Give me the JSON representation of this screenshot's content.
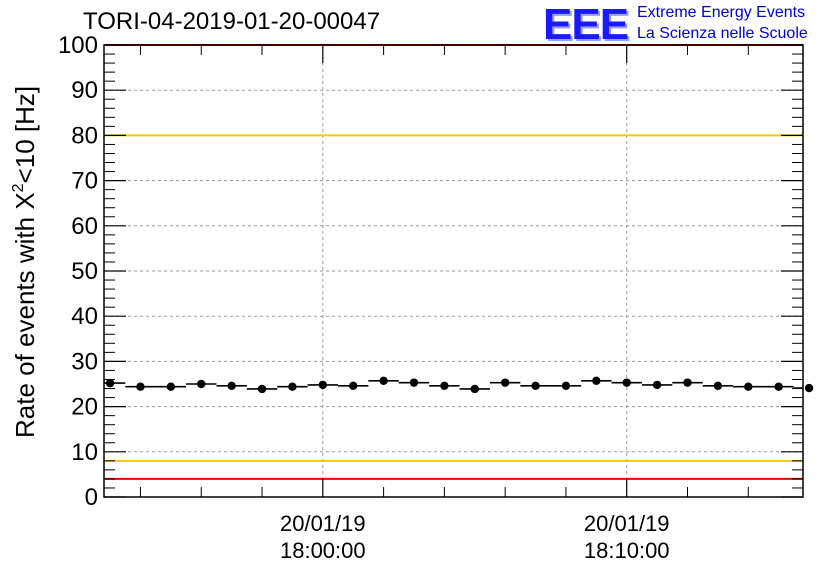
{
  "header": {
    "title": "TORI-04-2019-01-20-00047"
  },
  "logo": {
    "mark": "EEE",
    "line1": "Extreme Energy Events",
    "line2": "La Scienza nelle Scuole"
  },
  "chart_data": {
    "type": "scatter",
    "title": "TORI-04-2019-01-20-00047",
    "ylabel_main": "Rate of events with X",
    "ylabel_sup": "2",
    "ylabel_tail": "<10 [Hz]",
    "xlabel": "",
    "ylim": [
      0,
      100
    ],
    "yticks": [
      "0",
      "10",
      "20",
      "30",
      "40",
      "50",
      "60",
      "70",
      "80",
      "90",
      "100"
    ],
    "xlim_minutes": [
      -7.2,
      15.8
    ],
    "xticks": [
      {
        "minute": 0,
        "date": "20/01/19",
        "time": "18:00:00"
      },
      {
        "minute": 10,
        "date": "20/01/19",
        "time": "18:10:00"
      }
    ],
    "grid": true,
    "points": [
      {
        "x": -7.0,
        "y": 25.2
      },
      {
        "x": -6.0,
        "y": 24.4
      },
      {
        "x": -5.0,
        "y": 24.4
      },
      {
        "x": -4.0,
        "y": 25.0
      },
      {
        "x": -3.0,
        "y": 24.6
      },
      {
        "x": -2.0,
        "y": 23.9
      },
      {
        "x": -1.0,
        "y": 24.4
      },
      {
        "x": 0.0,
        "y": 24.8
      },
      {
        "x": 1.0,
        "y": 24.6
      },
      {
        "x": 2.0,
        "y": 25.7
      },
      {
        "x": 3.0,
        "y": 25.3
      },
      {
        "x": 4.0,
        "y": 24.6
      },
      {
        "x": 5.0,
        "y": 23.9
      },
      {
        "x": 6.0,
        "y": 25.3
      },
      {
        "x": 7.0,
        "y": 24.6
      },
      {
        "x": 8.0,
        "y": 24.6
      },
      {
        "x": 9.0,
        "y": 25.7
      },
      {
        "x": 10.0,
        "y": 25.3
      },
      {
        "x": 11.0,
        "y": 24.8
      },
      {
        "x": 12.0,
        "y": 25.3
      },
      {
        "x": 13.0,
        "y": 24.6
      },
      {
        "x": 14.0,
        "y": 24.4
      },
      {
        "x": 15.0,
        "y": 24.4
      },
      {
        "x": 16.0,
        "y": 24.1
      }
    ],
    "bin_width_minutes": 1.0,
    "reference_lines": [
      {
        "y": 100,
        "color": "#ee0000"
      },
      {
        "y": 80,
        "color": "#f0cc00"
      },
      {
        "y": 8,
        "color": "#f0cc00"
      },
      {
        "y": 4,
        "color": "#ee0000"
      }
    ]
  }
}
